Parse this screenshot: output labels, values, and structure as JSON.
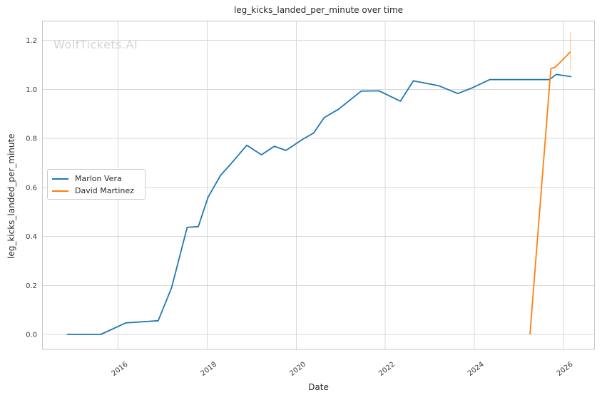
{
  "watermark": "WolfTickets.AI",
  "chart_data": {
    "type": "line",
    "title": "leg_kicks_landed_per_minute over time",
    "xlabel": "Date",
    "ylabel": "leg_kicks_landed_per_minute",
    "xlim": [
      2014.3,
      2026.7
    ],
    "ylim": [
      -0.061,
      1.279
    ],
    "x_ticks": [
      2016,
      2018,
      2020,
      2022,
      2024,
      2026
    ],
    "x_tick_labels": [
      "2016",
      "2018",
      "2020",
      "2022",
      "2024",
      "2026"
    ],
    "y_ticks": [
      0.0,
      0.2,
      0.4,
      0.6,
      0.8,
      1.0,
      1.2
    ],
    "y_tick_labels": [
      "0.0",
      "0.2",
      "0.4",
      "0.6",
      "0.8",
      "1.0",
      "1.2"
    ],
    "grid": true,
    "legend_position": "center-left",
    "colors": {
      "grid": "#d9d9d9",
      "spine": "#c8c8c8",
      "text": "#3a3a3a",
      "background": "#ffffff"
    },
    "series": [
      {
        "name": "Marlon Vera",
        "color": "#1f77b4",
        "points": [
          [
            2014.85,
            0.0
          ],
          [
            2015.61,
            0.0
          ],
          [
            2016.17,
            0.047
          ],
          [
            2016.9,
            0.056
          ],
          [
            2017.2,
            0.19
          ],
          [
            2017.55,
            0.437
          ],
          [
            2017.8,
            0.44
          ],
          [
            2018.02,
            0.56
          ],
          [
            2018.3,
            0.649
          ],
          [
            2018.59,
            0.708
          ],
          [
            2018.89,
            0.772
          ],
          [
            2019.22,
            0.733
          ],
          [
            2019.51,
            0.768
          ],
          [
            2019.77,
            0.751
          ],
          [
            2020.15,
            0.797
          ],
          [
            2020.39,
            0.822
          ],
          [
            2020.63,
            0.885
          ],
          [
            2020.95,
            0.919
          ],
          [
            2021.46,
            0.993
          ],
          [
            2021.86,
            0.994
          ],
          [
            2022.34,
            0.952
          ],
          [
            2022.63,
            1.035
          ],
          [
            2023.2,
            1.015
          ],
          [
            2023.63,
            0.983
          ],
          [
            2023.95,
            1.006
          ],
          [
            2024.35,
            1.04
          ],
          [
            2025.69,
            1.04
          ],
          [
            2025.84,
            1.061
          ],
          [
            2026.18,
            1.052
          ]
        ]
      },
      {
        "name": "David Martinez",
        "color": "#ff7f0e",
        "points": [
          [
            2025.25,
            0.0
          ],
          [
            2025.72,
            1.085
          ],
          [
            2025.82,
            1.091
          ],
          [
            2026.16,
            1.153
          ]
        ],
        "error_bar": {
          "x": 2026.16,
          "low": 1.08,
          "high": 1.234
        }
      }
    ]
  }
}
